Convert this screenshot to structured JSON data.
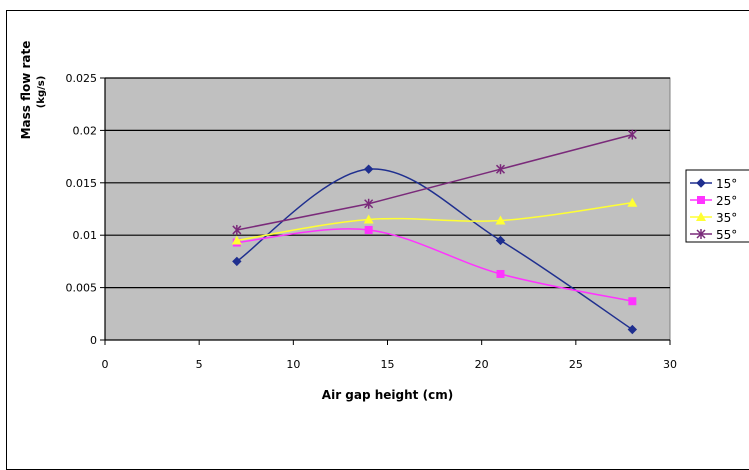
{
  "chart_data": {
    "type": "line",
    "title": "",
    "xlabel": "Air gap height (cm)",
    "ylabel": "Mass flow rate",
    "ylabel_clipped": "(kg/s)",
    "xlim": [
      0,
      30
    ],
    "ylim": [
      0,
      0.025
    ],
    "xticks": [
      "0",
      "5",
      "10",
      "15",
      "20",
      "25",
      "30"
    ],
    "yticks": [
      "0",
      "0.005",
      "0.01",
      "0.015",
      "0.02",
      "0.025"
    ],
    "grid": "horizontal",
    "plot_background": "#c0c0c0",
    "legend_position": "right",
    "x": [
      7,
      14,
      21,
      28
    ],
    "series": [
      {
        "name": "15°",
        "color": "#1f2f8f",
        "marker": "diamond",
        "smooth": true,
        "values": [
          0.0075,
          0.0163,
          0.0095,
          0.001
        ]
      },
      {
        "name": "25°",
        "color": "#ff33ff",
        "marker": "square",
        "smooth": true,
        "values": [
          0.0093,
          0.0105,
          0.0063,
          0.0037
        ]
      },
      {
        "name": "35°",
        "color": "#ffff33",
        "marker": "triangle",
        "smooth": true,
        "values": [
          0.0095,
          0.0115,
          0.0114,
          0.0131
        ]
      },
      {
        "name": "55°",
        "color": "#7a2a7a",
        "marker": "star",
        "smooth": false,
        "values": [
          0.0105,
          0.013,
          0.0163,
          0.0196
        ]
      }
    ]
  }
}
